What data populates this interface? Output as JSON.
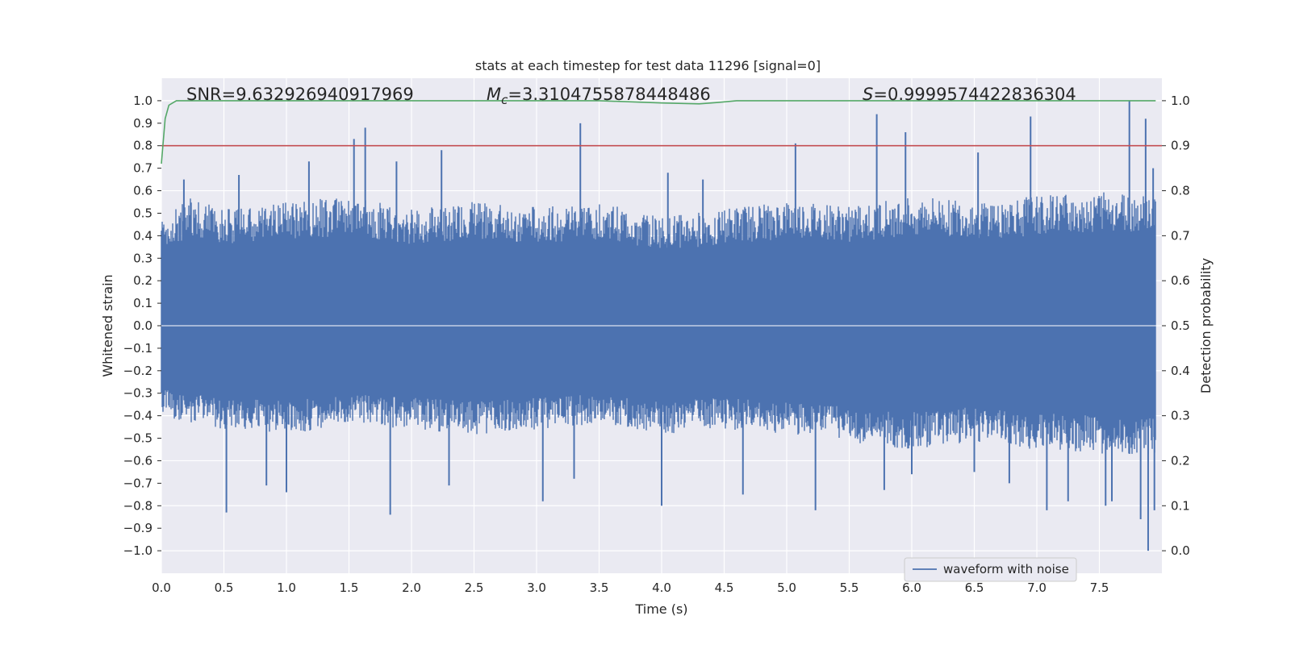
{
  "chart_data": {
    "type": "line",
    "title": "stats at each timestep for test data 11296 [signal=0]",
    "xlabel": "Time (s)",
    "ylabel": "Whitened strain",
    "y2label": "Detection probability",
    "xlim": [
      0.0,
      8.0
    ],
    "ylim": [
      -1.1,
      1.1
    ],
    "y2lim": [
      -0.05,
      1.05
    ],
    "x_ticks": [
      0.0,
      0.5,
      1.0,
      1.5,
      2.0,
      2.5,
      3.0,
      3.5,
      4.0,
      4.5,
      5.0,
      5.5,
      6.0,
      6.5,
      7.0,
      7.5
    ],
    "x_tick_labels": [
      "0.0",
      "0.5",
      "1.0",
      "1.5",
      "2.0",
      "2.5",
      "3.0",
      "3.5",
      "4.0",
      "4.5",
      "5.0",
      "5.5",
      "6.0",
      "6.5",
      "7.0",
      "7.5"
    ],
    "y_ticks": [
      1.0,
      0.9,
      0.8,
      0.7,
      0.6,
      0.5,
      0.4,
      0.3,
      0.2,
      0.1,
      0.0,
      -0.1,
      -0.2,
      -0.3,
      -0.4,
      -0.5,
      -0.6,
      -0.7,
      -0.8,
      -0.9,
      -1.0
    ],
    "y_tick_labels": [
      "1.0",
      "0.9",
      "0.8",
      "0.7",
      "0.6",
      "0.5",
      "0.4",
      "0.3",
      "0.2",
      "0.1",
      "0.0",
      "−0.1",
      "−0.2",
      "−0.3",
      "−0.4",
      "−0.5",
      "−0.6",
      "−0.7",
      "−0.8",
      "−0.9",
      "−1.0"
    ],
    "y2_ticks": [
      1.0,
      0.9,
      0.8,
      0.7,
      0.6,
      0.5,
      0.4,
      0.3,
      0.2,
      0.1,
      0.0
    ],
    "y2_tick_labels": [
      "1.0",
      "0.9",
      "0.8",
      "0.7",
      "0.6",
      "0.5",
      "0.4",
      "0.3",
      "0.2",
      "0.1",
      "0.0"
    ],
    "annotations": [
      {
        "name": "snr",
        "prefix": "SNR=",
        "value": "9.632926940917969"
      },
      {
        "name": "mc",
        "symbol": "M",
        "subscript": "c",
        "prefix": "=",
        "value": "3.3104755878448486"
      },
      {
        "name": "s",
        "symbol": "S",
        "prefix": "=",
        "value": "0.9999574422836304"
      }
    ],
    "series": [
      {
        "name": "waveform with noise",
        "axis": "left",
        "color": "#4c72b0",
        "envelope_upper": [
          [
            0.0,
            0.42
          ],
          [
            0.25,
            0.5
          ],
          [
            0.5,
            0.45
          ],
          [
            1.0,
            0.48
          ],
          [
            1.5,
            0.5
          ],
          [
            2.0,
            0.45
          ],
          [
            2.5,
            0.48
          ],
          [
            3.0,
            0.46
          ],
          [
            3.5,
            0.48
          ],
          [
            4.0,
            0.42
          ],
          [
            4.5,
            0.45
          ],
          [
            5.0,
            0.48
          ],
          [
            5.5,
            0.46
          ],
          [
            6.0,
            0.5
          ],
          [
            6.5,
            0.48
          ],
          [
            7.0,
            0.5
          ],
          [
            7.5,
            0.52
          ],
          [
            7.95,
            0.5
          ]
        ],
        "envelope_lower": [
          [
            0.0,
            -0.35
          ],
          [
            0.5,
            -0.4
          ],
          [
            1.0,
            -0.42
          ],
          [
            1.5,
            -0.38
          ],
          [
            2.0,
            -0.4
          ],
          [
            2.5,
            -0.42
          ],
          [
            3.0,
            -0.4
          ],
          [
            3.5,
            -0.38
          ],
          [
            4.0,
            -0.42
          ],
          [
            4.5,
            -0.4
          ],
          [
            5.0,
            -0.42
          ],
          [
            5.5,
            -0.45
          ],
          [
            6.0,
            -0.48
          ],
          [
            6.5,
            -0.45
          ],
          [
            7.0,
            -0.48
          ],
          [
            7.5,
            -0.5
          ],
          [
            7.95,
            -0.5
          ]
        ],
        "peaks": [
          [
            0.18,
            0.65
          ],
          [
            0.62,
            0.67
          ],
          [
            1.18,
            0.73
          ],
          [
            1.54,
            0.83
          ],
          [
            1.63,
            0.88
          ],
          [
            1.88,
            0.73
          ],
          [
            2.24,
            0.78
          ],
          [
            3.35,
            0.9
          ],
          [
            4.05,
            0.68
          ],
          [
            4.33,
            0.65
          ],
          [
            5.07,
            0.81
          ],
          [
            5.72,
            0.94
          ],
          [
            5.95,
            0.86
          ],
          [
            6.53,
            0.77
          ],
          [
            6.95,
            0.93
          ],
          [
            7.74,
            1.0
          ],
          [
            7.87,
            0.92
          ],
          [
            7.93,
            0.7
          ]
        ],
        "troughs": [
          [
            0.52,
            -0.83
          ],
          [
            0.84,
            -0.71
          ],
          [
            1.0,
            -0.74
          ],
          [
            1.83,
            -0.84
          ],
          [
            2.3,
            -0.71
          ],
          [
            3.05,
            -0.78
          ],
          [
            3.3,
            -0.68
          ],
          [
            4.0,
            -0.8
          ],
          [
            4.65,
            -0.75
          ],
          [
            5.23,
            -0.82
          ],
          [
            5.78,
            -0.73
          ],
          [
            6.0,
            -0.66
          ],
          [
            6.5,
            -0.65
          ],
          [
            6.78,
            -0.7
          ],
          [
            7.08,
            -0.82
          ],
          [
            7.25,
            -0.78
          ],
          [
            7.55,
            -0.8
          ],
          [
            7.6,
            -0.78
          ],
          [
            7.83,
            -0.86
          ],
          [
            7.89,
            -1.0
          ],
          [
            7.94,
            -0.82
          ]
        ]
      },
      {
        "name": "detection probability",
        "axis": "right",
        "color": "#55a868",
        "points": [
          [
            0.0,
            0.86
          ],
          [
            0.03,
            0.96
          ],
          [
            0.06,
            0.99
          ],
          [
            0.12,
            1.0
          ],
          [
            1.0,
            1.0
          ],
          [
            2.0,
            1.0
          ],
          [
            3.0,
            1.0
          ],
          [
            3.5,
            1.0
          ],
          [
            4.0,
            0.995
          ],
          [
            4.3,
            0.993
          ],
          [
            4.45,
            0.996
          ],
          [
            4.6,
            1.0
          ],
          [
            5.0,
            1.0
          ],
          [
            6.0,
            1.0
          ],
          [
            7.0,
            1.0
          ],
          [
            7.95,
            1.0
          ]
        ]
      },
      {
        "name": "threshold",
        "axis": "right",
        "color": "#c44e52",
        "points": [
          [
            0.0,
            0.9
          ],
          [
            8.0,
            0.9
          ]
        ]
      }
    ],
    "legend": {
      "position": "lower-right",
      "entries": [
        "waveform with noise"
      ]
    }
  }
}
